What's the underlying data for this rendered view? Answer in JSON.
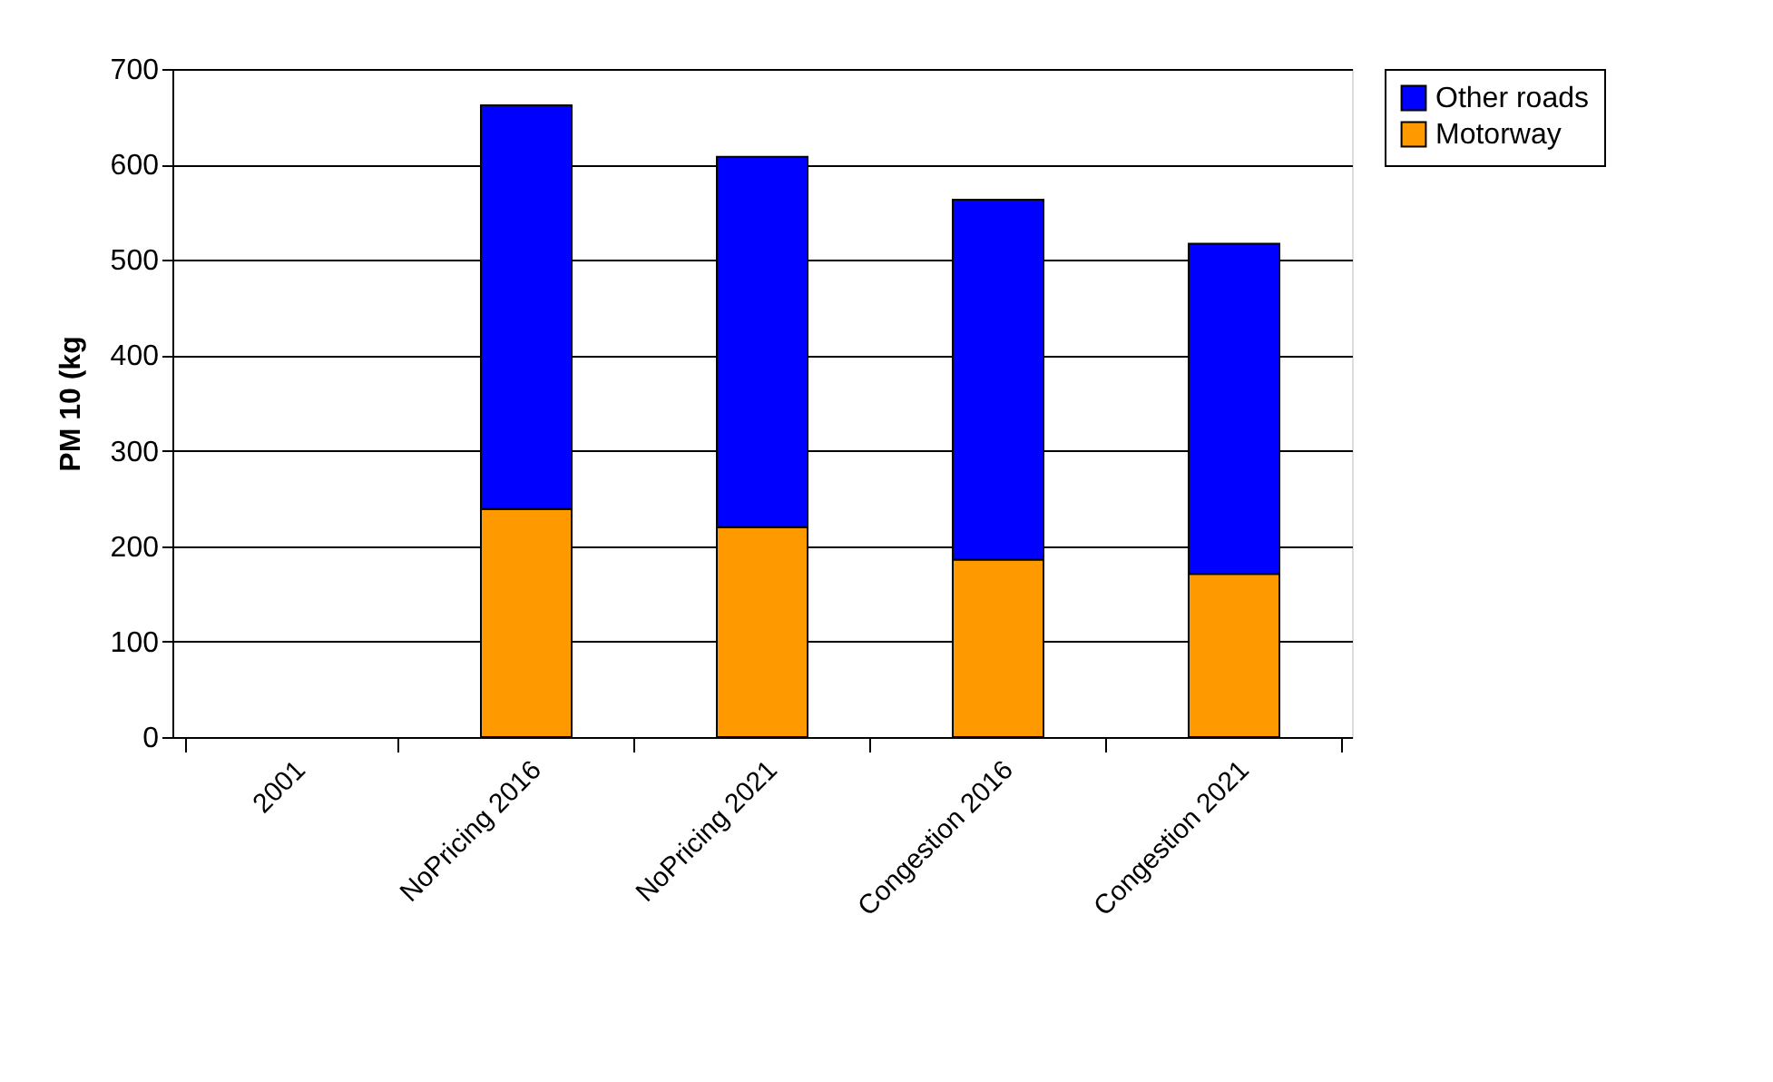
{
  "chart_data": {
    "type": "bar",
    "stacked": true,
    "ylabel": "PM 10 (kg",
    "categories": [
      "2001",
      "NoPricing 2016",
      "NoPricing 2021",
      "Congestion 2016",
      "Congestion 2021"
    ],
    "series": [
      {
        "name": "Motorway",
        "color": "#ff9900",
        "values": [
          null,
          239,
          220,
          186,
          171
        ]
      },
      {
        "name": "Other roads",
        "color": "#0000ff",
        "values": [
          null,
          423,
          388,
          377,
          346
        ]
      }
    ],
    "ylim": [
      0,
      700
    ],
    "yticks": [
      0,
      100,
      200,
      300,
      400,
      500,
      600,
      700
    ],
    "grid": "y",
    "legend": "right"
  }
}
